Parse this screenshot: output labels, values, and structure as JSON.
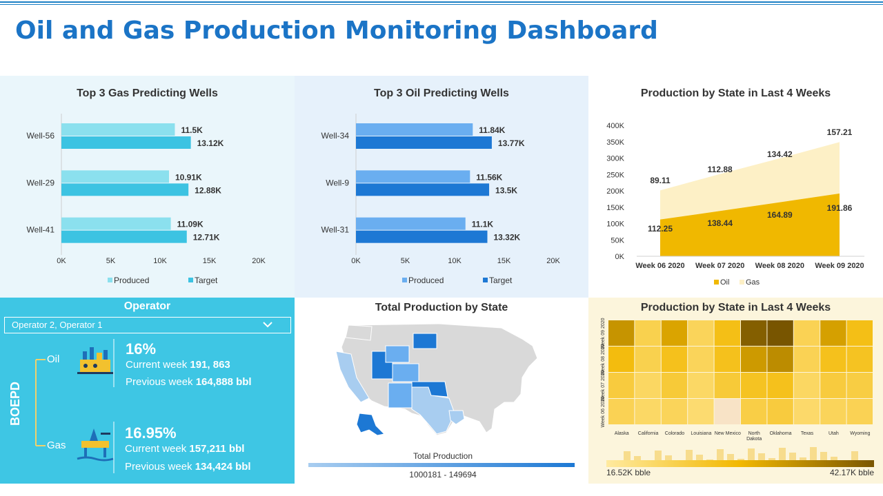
{
  "title": "Oil and Gas Production Monitoring Dashboard",
  "colors": {
    "title": "#1b74c6",
    "gas_produced": "#8be0ee",
    "gas_target": "#3cc3e2",
    "oil_produced": "#6aaef0",
    "oil_target": "#1d78d4",
    "area_oil": "#f0b800",
    "area_gas": "#fdf0c6",
    "operator_bg": "#3ec6e4"
  },
  "chart_data": [
    {
      "type": "bar",
      "title": "Top 3 Gas Predicting Wells",
      "categories": [
        "Well-56",
        "Well-29",
        "Well-41"
      ],
      "series": [
        {
          "name": "Produced",
          "values": [
            11.5,
            10.91,
            11.09
          ],
          "labels": [
            "11.5K",
            "10.91K",
            "11.09K"
          ]
        },
        {
          "name": "Target",
          "values": [
            13.12,
            12.88,
            12.71
          ],
          "labels": [
            "13.12K",
            "12.88K",
            "12.71K"
          ]
        }
      ],
      "xticks": [
        "0K",
        "5K",
        "10K",
        "15K",
        "20K"
      ],
      "xlim": [
        0,
        20
      ],
      "legend": "bottom"
    },
    {
      "type": "bar",
      "title": "Top 3 Oil Predicting Wells",
      "categories": [
        "Well-34",
        "Well-9",
        "Well-31"
      ],
      "series": [
        {
          "name": "Produced",
          "values": [
            11.84,
            11.56,
            11.1
          ],
          "labels": [
            "11.84K",
            "11.56K",
            "11.1K"
          ]
        },
        {
          "name": "Target",
          "values": [
            13.77,
            13.5,
            13.32
          ],
          "labels": [
            "13.77K",
            "13.5K",
            "13.32K"
          ]
        }
      ],
      "xticks": [
        "0K",
        "5K",
        "10K",
        "15K",
        "20K"
      ],
      "xlim": [
        0,
        20
      ],
      "legend": "bottom"
    },
    {
      "type": "area",
      "title": "Production by State in Last 4 Weeks",
      "categories": [
        "Week 06 2020",
        "Week 07 2020",
        "Week 08 2020",
        "Week 09 2020"
      ],
      "series": [
        {
          "name": "Oil",
          "values": [
            112.25,
            138.44,
            164.89,
            191.86
          ],
          "labels": [
            "112.25",
            "138.44",
            "164.89",
            "191.86"
          ]
        },
        {
          "name": "Gas",
          "values": [
            89.11,
            112.88,
            134.42,
            157.21
          ],
          "labels": [
            "89.11",
            "112.88",
            "134.42",
            "157.21"
          ]
        }
      ],
      "yticks": [
        "0K",
        "50K",
        "100K",
        "150K",
        "200K",
        "250K",
        "300K",
        "350K",
        "400K"
      ],
      "ylim": [
        0,
        400
      ],
      "legend": "bottom"
    },
    {
      "type": "heatmap",
      "title": "Production by State in Last 4 Weeks",
      "rows": [
        "Week 09 2020",
        "Week 08 2020",
        "Week 07 2020",
        "Week 06 2020"
      ],
      "columns": [
        "Alaska",
        "California",
        "Colorado",
        "Louisiana",
        "New Mexico",
        "North Dakota",
        "Oklahoma",
        "Texas",
        "Utah",
        "Wyoming"
      ],
      "values": [
        [
          0.68,
          0.22,
          0.6,
          0.18,
          0.42,
          0.95,
          1.0,
          0.2,
          0.62,
          0.42
        ],
        [
          0.45,
          0.22,
          0.4,
          0.18,
          0.4,
          0.65,
          0.72,
          0.2,
          0.4,
          0.38
        ],
        [
          0.28,
          0.15,
          0.3,
          0.14,
          0.3,
          0.38,
          0.4,
          0.15,
          0.28,
          0.26
        ],
        [
          0.2,
          0.14,
          0.18,
          0.1,
          0.0,
          0.25,
          0.28,
          0.12,
          0.18,
          0.2
        ]
      ],
      "scale_min_label": "16.52K bble",
      "scale_max_label": "42.17K bble"
    }
  ],
  "operator": {
    "header": "Operator",
    "select_value": "Operator 2, Operator 1",
    "axis_label": "BOEPD",
    "oil": {
      "label": "Oil",
      "pct": "16%",
      "current_prefix": "Current week",
      "current_value": "191, 863",
      "previous_prefix": "Previous week",
      "previous_value": "164,888 bbl"
    },
    "gas": {
      "label": "Gas",
      "pct": "16.95%",
      "current_prefix": "Current week",
      "current_value": "157,211 bbl",
      "previous_prefix": "Previous week",
      "previous_value": "134,424 bbl"
    }
  },
  "map": {
    "title": "Total Production by State",
    "legend_title": "Total Production",
    "legend_range": "1000181  -  149694"
  }
}
